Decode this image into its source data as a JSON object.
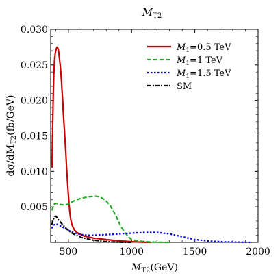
{
  "chart_data": {
    "type": "line",
    "title": "M_T2",
    "title_main": "M",
    "title_sub": "T2",
    "xlabel": "M_T2(GeV)",
    "xlabel_main": "M",
    "xlabel_sub": "T2",
    "xlabel_unit": "(GeV)",
    "ylabel": "dσ/dM_T2(fb/GeV)",
    "ylabel_pre": "dσ/dM",
    "ylabel_sub": "T2",
    "ylabel_post": "(fb/GeV)",
    "xlim": [
      360,
      2000
    ],
    "ylim": [
      0,
      0.03
    ],
    "xticks": [
      500,
      1000,
      1500,
      2000
    ],
    "xtick_labels": [
      "500",
      "1000",
      "1500",
      "2000"
    ],
    "yticks": [
      0.005,
      0.01,
      0.015,
      0.02,
      0.025,
      0.03
    ],
    "ytick_labels": [
      "0.005",
      "0.010",
      "0.015",
      "0.020",
      "0.025",
      "0.030"
    ],
    "grid": false,
    "legend_position": "top-right",
    "series": [
      {
        "name": "M_1=0.5 TeV",
        "name_main": "M",
        "name_sub": "1",
        "name_value": "=0.5 TeV",
        "color": "#cc0000",
        "style": "solid",
        "x": [
          370,
          375,
          380,
          385,
          390,
          395,
          400,
          405,
          410,
          415,
          420,
          425,
          430,
          435,
          440,
          445,
          450,
          455,
          460,
          465,
          470,
          475,
          480,
          485,
          490,
          495,
          500,
          505,
          510,
          515,
          520,
          525,
          530,
          540,
          550,
          560,
          575,
          600,
          625,
          650,
          700,
          750,
          800,
          850,
          900,
          950,
          1000,
          1050,
          1100,
          1150
        ],
        "y": [
          0.0105,
          0.0155,
          0.0205,
          0.0235,
          0.0255,
          0.0265,
          0.027,
          0.0273,
          0.0275,
          0.0274,
          0.0272,
          0.0266,
          0.0258,
          0.025,
          0.024,
          0.0228,
          0.0214,
          0.02,
          0.0182,
          0.0168,
          0.0155,
          0.014,
          0.0125,
          0.0108,
          0.0094,
          0.008,
          0.0066,
          0.0055,
          0.0045,
          0.0037,
          0.0031,
          0.0027,
          0.0024,
          0.002,
          0.0017,
          0.0015,
          0.0013,
          0.0011,
          0.0009,
          0.0008,
          0.0006,
          0.0005,
          0.0004,
          0.0003,
          0.0002,
          0.00015,
          0.0001,
          5e-05,
          2e-05,
          0.0
        ]
      },
      {
        "name": "M_1=1 TeV",
        "name_main": "M",
        "name_sub": "1",
        "name_value": "=1 TeV",
        "color": "#22aa22",
        "style": "dashed",
        "x": [
          370,
          380,
          390,
          400,
          420,
          450,
          480,
          500,
          520,
          550,
          580,
          600,
          650,
          700,
          720,
          750,
          780,
          800,
          830,
          850,
          880,
          900,
          920,
          950,
          980,
          1000,
          1050,
          1100,
          1150,
          1200,
          1250,
          1300
        ],
        "y": [
          0.0045,
          0.0051,
          0.0054,
          0.0055,
          0.0054,
          0.0053,
          0.0053,
          0.0054,
          0.0056,
          0.0059,
          0.0061,
          0.0062,
          0.0064,
          0.0065,
          0.0065,
          0.0064,
          0.0061,
          0.0058,
          0.0052,
          0.0046,
          0.0036,
          0.0028,
          0.0021,
          0.0013,
          0.0007,
          0.0004,
          0.0002,
          0.0001,
          5e-05,
          2e-05,
          1e-05,
          0.0
        ]
      },
      {
        "name": "M_1=1.5 TeV",
        "name_main": "M",
        "name_sub": "1",
        "name_value": "=1.5 TeV",
        "color": "#0000dd",
        "style": "dotted",
        "x": [
          370,
          380,
          400,
          420,
          450,
          480,
          500,
          550,
          600,
          650,
          700,
          800,
          900,
          1000,
          1100,
          1200,
          1250,
          1300,
          1350,
          1400,
          1450,
          1500,
          1550,
          1600,
          1700,
          1800,
          1900,
          1950
        ],
        "y": [
          0.002,
          0.0024,
          0.0026,
          0.0025,
          0.0022,
          0.0019,
          0.0017,
          0.0013,
          0.0011,
          0.001,
          0.001,
          0.0011,
          0.0012,
          0.0013,
          0.0014,
          0.0014,
          0.0013,
          0.0012,
          0.001,
          0.0008,
          0.0006,
          0.0004,
          0.0003,
          0.0002,
          0.0001,
          5e-05,
          2e-05,
          0.0
        ]
      },
      {
        "name": "SM",
        "color": "#000000",
        "style": "dashdot",
        "x": [
          370,
          380,
          390,
          400,
          410,
          420,
          430,
          440,
          450,
          460,
          480,
          500,
          520,
          550,
          580,
          600,
          650,
          700,
          750,
          800,
          850,
          900,
          950,
          1000
        ],
        "y": [
          0.0025,
          0.0032,
          0.0036,
          0.0037,
          0.0035,
          0.0032,
          0.003,
          0.0028,
          0.0026,
          0.0024,
          0.002,
          0.0017,
          0.0014,
          0.0011,
          0.0009,
          0.0007,
          0.0005,
          0.0003,
          0.0002,
          0.0001,
          5e-05,
          2e-05,
          1e-05,
          0.0
        ]
      }
    ]
  }
}
